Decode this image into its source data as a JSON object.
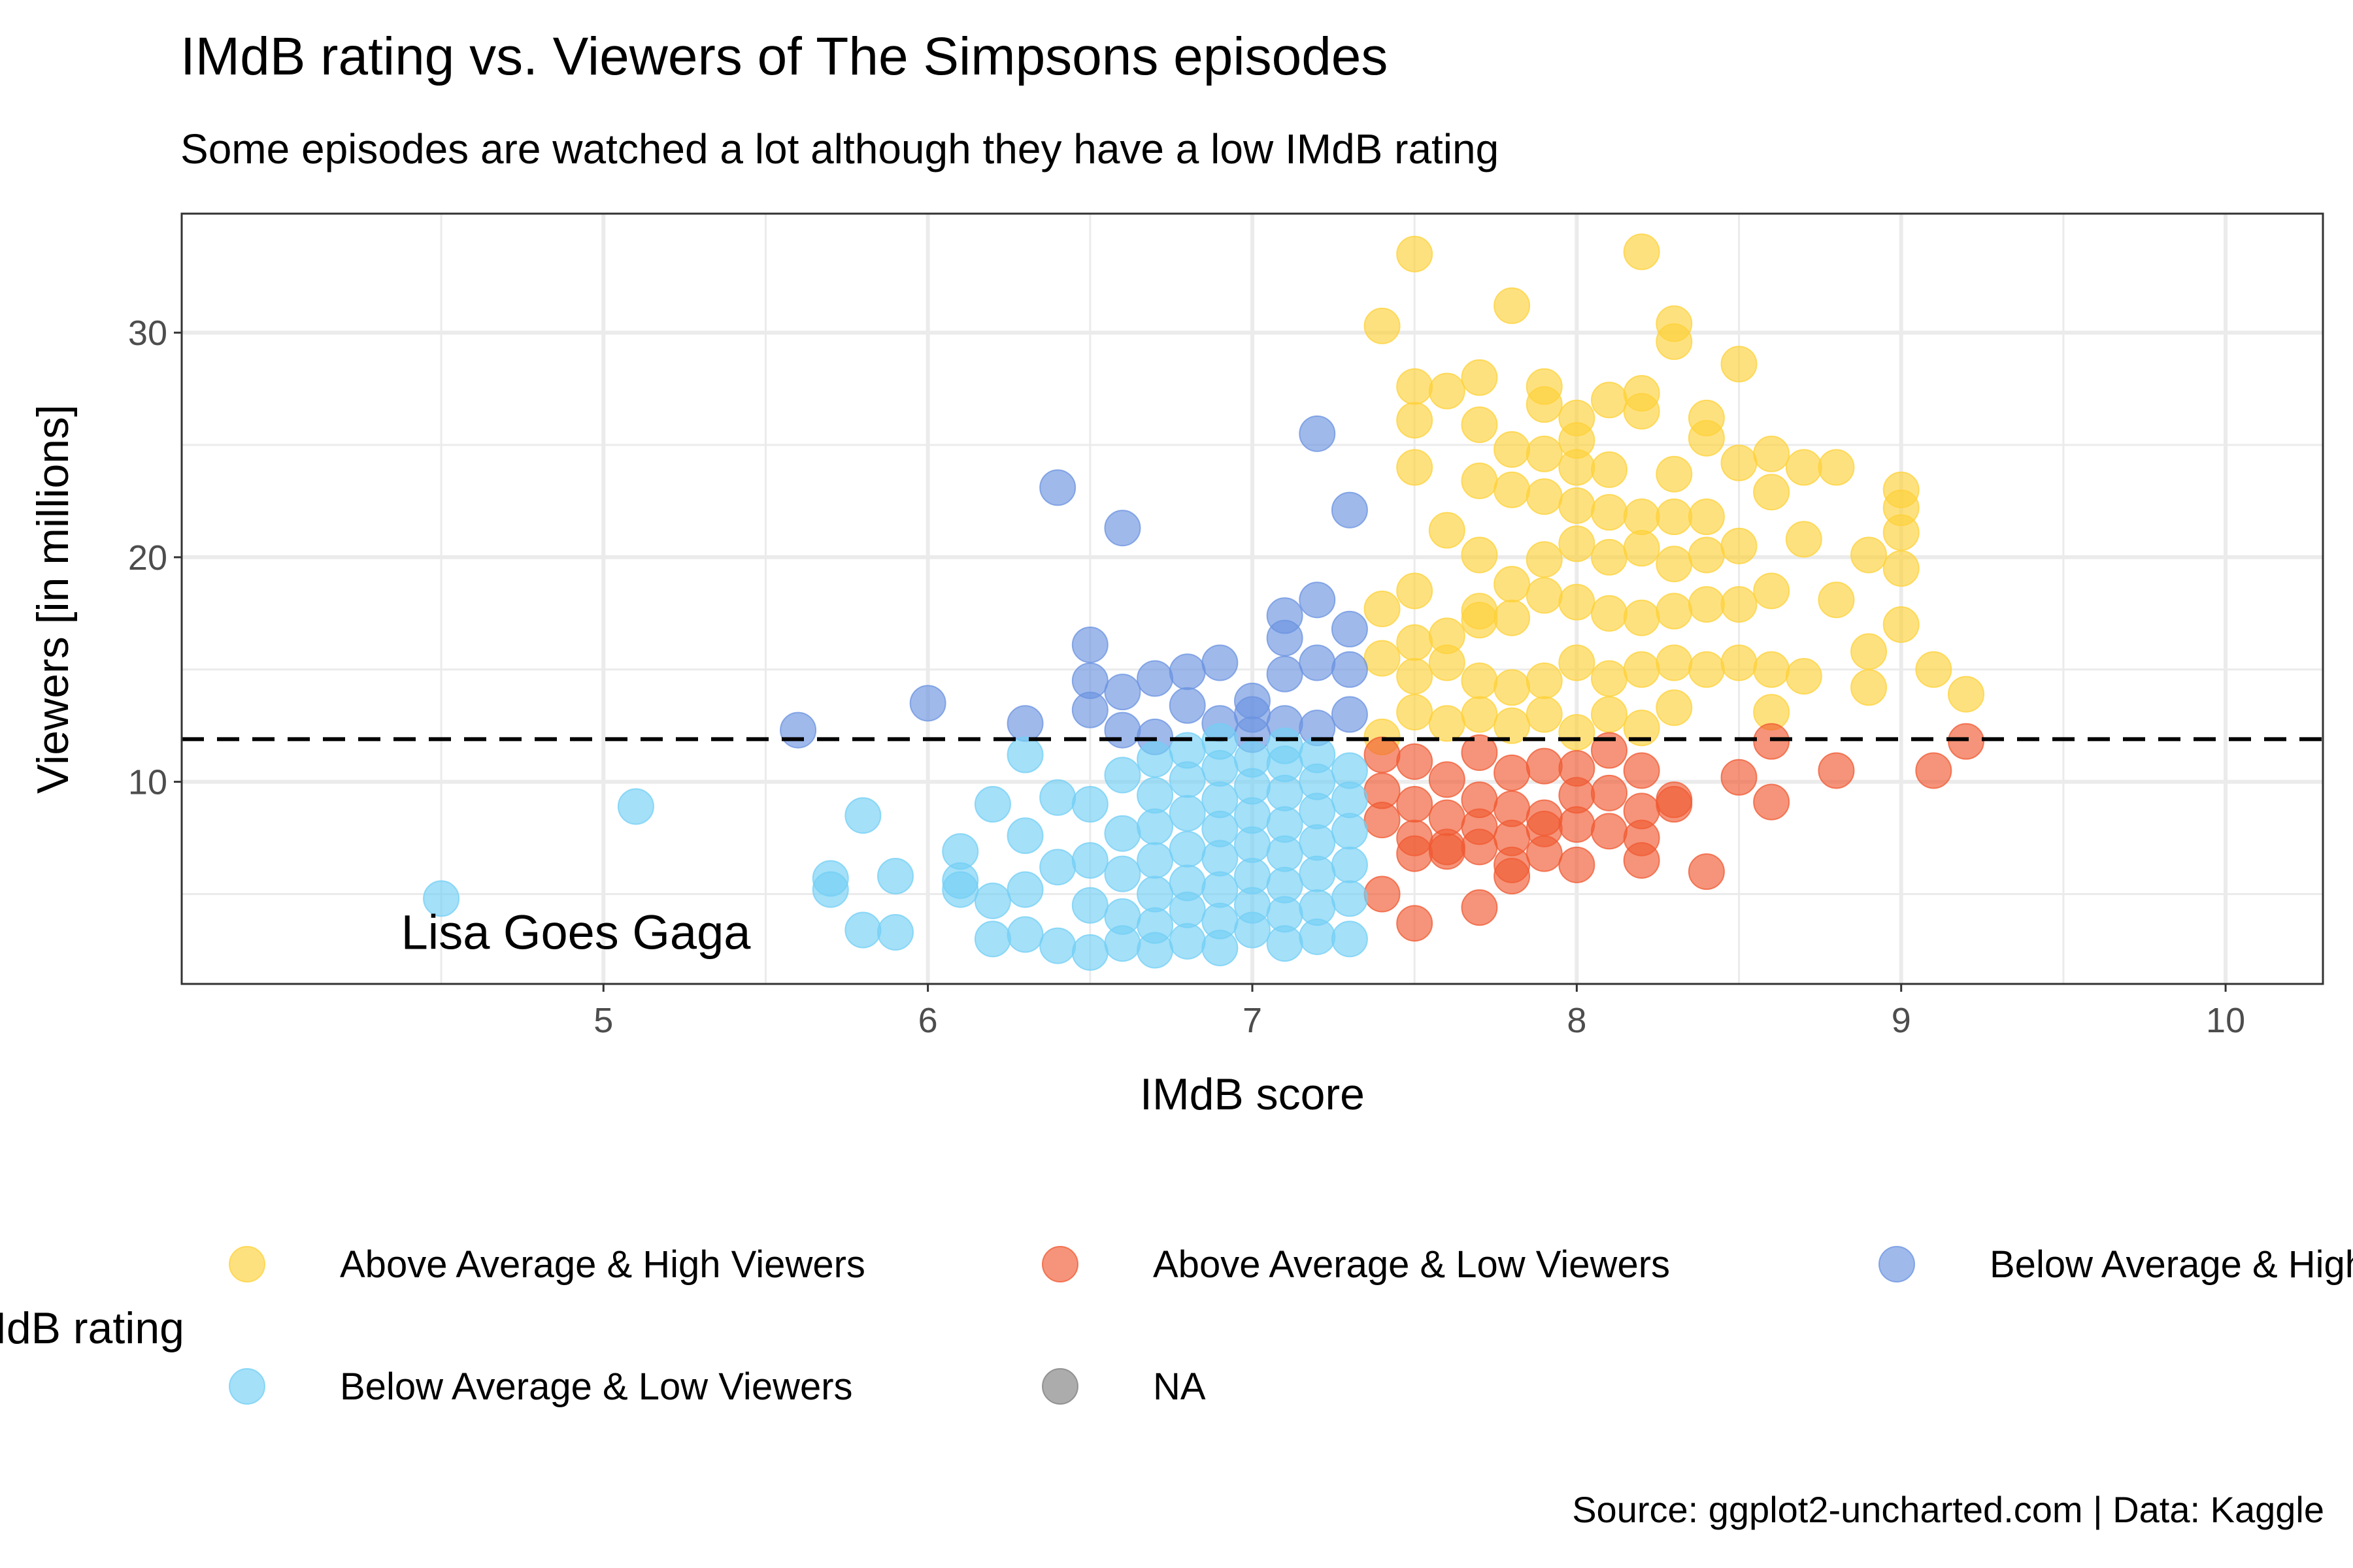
{
  "chart_data": {
    "type": "scatter",
    "title": "IMdB rating vs. Viewers of The Simpsons episodes",
    "subtitle": "Some episodes are watched a lot although they have a low IMdB rating",
    "xlabel": "IMdB score",
    "ylabel": "Viewers [in millions]",
    "xlim": [
      3.7,
      10.3
    ],
    "ylim": [
      1.0,
      35.3
    ],
    "x_ticks": [
      5,
      6,
      7,
      8,
      9,
      10
    ],
    "y_ticks": [
      10,
      20,
      30
    ],
    "grid": true,
    "reference_line": {
      "axis": "y",
      "value": 11.9,
      "style": "dashed"
    },
    "annotation": {
      "text": "Lisa Goes Gaga",
      "x": 4.9,
      "y": 2.9
    },
    "caption": "Source: ggplot2-uncharted.com | Data: Kaggle",
    "legend": {
      "title": "IMdB rating",
      "position": "bottom",
      "entries": [
        {
          "label": "Above Average & High Viewers",
          "color": "#FDD13A"
        },
        {
          "label": "Above Average & Low Viewers",
          "color": "#F05A33"
        },
        {
          "label": "Below Average & High Viewers",
          "color": "#6B93E0"
        },
        {
          "label": "Below Average & Low Viewers",
          "color": "#73CFF5"
        },
        {
          "label": "NA",
          "color": "#7F7F7F"
        }
      ]
    },
    "series": [
      {
        "name": "Above Average & High Viewers",
        "color": "#FDD13A",
        "points": [
          [
            7.5,
            33.5
          ],
          [
            8.2,
            33.6
          ],
          [
            7.4,
            30.3
          ],
          [
            7.8,
            31.2
          ],
          [
            8.3,
            30.4
          ],
          [
            8.3,
            29.6
          ],
          [
            7.5,
            27.6
          ],
          [
            7.6,
            27.4
          ],
          [
            7.7,
            28.0
          ],
          [
            7.9,
            27.6
          ],
          [
            8.0,
            26.2
          ],
          [
            8.1,
            27.0
          ],
          [
            8.2,
            27.3
          ],
          [
            8.4,
            26.2
          ],
          [
            8.5,
            28.6
          ],
          [
            7.5,
            26.1
          ],
          [
            7.7,
            25.9
          ],
          [
            7.9,
            26.8
          ],
          [
            8.0,
            25.2
          ],
          [
            8.2,
            26.5
          ],
          [
            8.4,
            25.3
          ],
          [
            7.5,
            24.0
          ],
          [
            7.7,
            23.4
          ],
          [
            7.8,
            24.8
          ],
          [
            7.9,
            24.6
          ],
          [
            8.0,
            24.0
          ],
          [
            8.1,
            23.9
          ],
          [
            8.3,
            23.7
          ],
          [
            8.5,
            24.2
          ],
          [
            8.6,
            24.6
          ],
          [
            8.7,
            24.0
          ],
          [
            8.8,
            24.0
          ],
          [
            9.0,
            23.0
          ],
          [
            7.4,
            17.7
          ],
          [
            7.5,
            18.5
          ],
          [
            7.6,
            21.2
          ],
          [
            7.7,
            20.1
          ],
          [
            7.8,
            23.0
          ],
          [
            7.9,
            22.7
          ],
          [
            8.0,
            22.3
          ],
          [
            8.1,
            22.0
          ],
          [
            8.2,
            21.8
          ],
          [
            8.3,
            21.8
          ],
          [
            8.4,
            21.8
          ],
          [
            8.6,
            22.9
          ],
          [
            9.0,
            22.2
          ],
          [
            7.7,
            17.2
          ],
          [
            7.8,
            18.8
          ],
          [
            7.9,
            19.9
          ],
          [
            8.0,
            20.6
          ],
          [
            8.1,
            20.0
          ],
          [
            8.2,
            20.4
          ],
          [
            8.3,
            19.7
          ],
          [
            8.4,
            20.1
          ],
          [
            8.5,
            20.5
          ],
          [
            8.7,
            20.8
          ],
          [
            8.9,
            20.1
          ],
          [
            9.0,
            21.1
          ],
          [
            7.5,
            16.2
          ],
          [
            7.6,
            16.5
          ],
          [
            7.7,
            17.6
          ],
          [
            7.8,
            17.3
          ],
          [
            7.9,
            18.3
          ],
          [
            8.0,
            18.0
          ],
          [
            8.1,
            17.5
          ],
          [
            8.2,
            17.3
          ],
          [
            8.3,
            17.6
          ],
          [
            8.4,
            17.9
          ],
          [
            8.5,
            17.9
          ],
          [
            8.6,
            18.5
          ],
          [
            8.8,
            18.1
          ],
          [
            9.0,
            19.5
          ],
          [
            7.4,
            15.5
          ],
          [
            7.5,
            14.7
          ],
          [
            7.6,
            15.3
          ],
          [
            7.7,
            14.5
          ],
          [
            7.8,
            14.2
          ],
          [
            7.9,
            14.5
          ],
          [
            8.0,
            15.3
          ],
          [
            8.1,
            14.6
          ],
          [
            8.2,
            15.0
          ],
          [
            8.3,
            15.3
          ],
          [
            8.4,
            15.0
          ],
          [
            8.5,
            15.3
          ],
          [
            8.6,
            15.0
          ],
          [
            8.7,
            14.7
          ],
          [
            8.9,
            15.8
          ],
          [
            9.0,
            17.0
          ],
          [
            9.1,
            15.0
          ],
          [
            9.2,
            13.9
          ],
          [
            7.4,
            12.0
          ],
          [
            7.5,
            13.1
          ],
          [
            7.6,
            12.6
          ],
          [
            7.7,
            13.0
          ],
          [
            7.8,
            12.5
          ],
          [
            7.9,
            13.0
          ],
          [
            8.0,
            12.2
          ],
          [
            8.1,
            13.0
          ],
          [
            8.2,
            12.4
          ],
          [
            8.3,
            13.3
          ],
          [
            8.6,
            13.1
          ],
          [
            8.9,
            14.2
          ]
        ]
      },
      {
        "name": "Above Average & Low Viewers",
        "color": "#F05A33",
        "points": [
          [
            7.4,
            11.2
          ],
          [
            7.5,
            10.9
          ],
          [
            7.6,
            10.1
          ],
          [
            7.7,
            11.3
          ],
          [
            7.8,
            10.4
          ],
          [
            7.9,
            10.7
          ],
          [
            8.0,
            10.6
          ],
          [
            8.1,
            11.4
          ],
          [
            8.2,
            10.5
          ],
          [
            7.4,
            9.6
          ],
          [
            7.5,
            9.0
          ],
          [
            7.6,
            8.4
          ],
          [
            7.7,
            9.2
          ],
          [
            7.8,
            8.8
          ],
          [
            7.9,
            8.4
          ],
          [
            8.0,
            9.4
          ],
          [
            8.1,
            9.5
          ],
          [
            8.2,
            8.7
          ],
          [
            8.3,
            9.2
          ],
          [
            7.4,
            8.3
          ],
          [
            7.5,
            7.5
          ],
          [
            7.6,
            7.1
          ],
          [
            7.7,
            8.0
          ],
          [
            7.8,
            7.5
          ],
          [
            7.9,
            7.9
          ],
          [
            8.0,
            8.1
          ],
          [
            8.1,
            7.8
          ],
          [
            8.2,
            7.5
          ],
          [
            8.3,
            9.0
          ],
          [
            7.5,
            6.8
          ],
          [
            7.6,
            6.9
          ],
          [
            7.7,
            7.1
          ],
          [
            7.8,
            6.3
          ],
          [
            7.9,
            6.8
          ],
          [
            8.0,
            6.3
          ],
          [
            7.4,
            5.0
          ],
          [
            7.5,
            3.7
          ],
          [
            7.7,
            4.4
          ],
          [
            7.8,
            5.8
          ],
          [
            8.2,
            6.5
          ],
          [
            8.4,
            6.0
          ],
          [
            8.5,
            10.2
          ],
          [
            8.6,
            9.1
          ],
          [
            8.6,
            11.8
          ],
          [
            8.8,
            10.5
          ],
          [
            9.1,
            10.5
          ],
          [
            9.2,
            11.8
          ]
        ]
      },
      {
        "name": "Below Average & High Viewers",
        "color": "#6B93E0",
        "points": [
          [
            7.2,
            25.5
          ],
          [
            6.4,
            23.1
          ],
          [
            7.3,
            22.1
          ],
          [
            6.6,
            21.3
          ],
          [
            7.2,
            18.1
          ],
          [
            7.1,
            17.4
          ],
          [
            7.3,
            16.8
          ],
          [
            6.5,
            16.1
          ],
          [
            7.1,
            16.4
          ],
          [
            6.5,
            14.5
          ],
          [
            6.6,
            14.0
          ],
          [
            6.7,
            14.6
          ],
          [
            6.8,
            14.9
          ],
          [
            6.9,
            15.3
          ],
          [
            7.0,
            13.6
          ],
          [
            7.1,
            14.8
          ],
          [
            7.2,
            15.3
          ],
          [
            7.3,
            15.0
          ],
          [
            6.0,
            13.5
          ],
          [
            6.3,
            12.6
          ],
          [
            6.5,
            13.2
          ],
          [
            6.6,
            12.3
          ],
          [
            6.7,
            12.0
          ],
          [
            6.8,
            13.4
          ],
          [
            6.9,
            12.6
          ],
          [
            7.0,
            13.0
          ],
          [
            7.1,
            12.6
          ],
          [
            7.2,
            12.4
          ],
          [
            7.3,
            13.0
          ],
          [
            5.6,
            12.3
          ],
          [
            7.0,
            12.1
          ]
        ]
      },
      {
        "name": "Below Average & Low Viewers",
        "color": "#73CFF5",
        "points": [
          [
            4.5,
            4.8
          ],
          [
            5.1,
            8.9
          ],
          [
            5.7,
            5.2
          ],
          [
            5.7,
            5.7
          ],
          [
            5.8,
            3.4
          ],
          [
            5.8,
            8.5
          ],
          [
            5.9,
            5.8
          ],
          [
            5.9,
            3.3
          ],
          [
            6.1,
            5.2
          ],
          [
            6.1,
            6.9
          ],
          [
            6.1,
            5.6
          ],
          [
            6.2,
            9.0
          ],
          [
            6.2,
            4.7
          ],
          [
            6.2,
            3.0
          ],
          [
            6.3,
            3.2
          ],
          [
            6.3,
            7.6
          ],
          [
            6.3,
            5.2
          ],
          [
            6.3,
            11.2
          ],
          [
            6.4,
            2.7
          ],
          [
            6.4,
            6.2
          ],
          [
            6.4,
            9.3
          ],
          [
            6.5,
            2.4
          ],
          [
            6.5,
            4.5
          ],
          [
            6.5,
            6.5
          ],
          [
            6.5,
            9.0
          ],
          [
            6.6,
            2.8
          ],
          [
            6.6,
            4.0
          ],
          [
            6.6,
            5.9
          ],
          [
            6.6,
            7.7
          ],
          [
            6.6,
            10.3
          ],
          [
            6.7,
            2.5
          ],
          [
            6.7,
            3.6
          ],
          [
            6.7,
            5.0
          ],
          [
            6.7,
            6.5
          ],
          [
            6.7,
            8.0
          ],
          [
            6.7,
            9.4
          ],
          [
            6.7,
            11.0
          ],
          [
            6.8,
            2.9
          ],
          [
            6.8,
            4.3
          ],
          [
            6.8,
            5.5
          ],
          [
            6.8,
            7.0
          ],
          [
            6.8,
            8.6
          ],
          [
            6.8,
            10.1
          ],
          [
            6.8,
            11.4
          ],
          [
            6.9,
            2.6
          ],
          [
            6.9,
            3.8
          ],
          [
            6.9,
            5.2
          ],
          [
            6.9,
            6.6
          ],
          [
            6.9,
            7.9
          ],
          [
            6.9,
            9.2
          ],
          [
            6.9,
            10.6
          ],
          [
            6.9,
            11.8
          ],
          [
            7.0,
            3.4
          ],
          [
            7.0,
            4.5
          ],
          [
            7.0,
            5.8
          ],
          [
            7.0,
            7.2
          ],
          [
            7.0,
            8.5
          ],
          [
            7.0,
            9.8
          ],
          [
            7.0,
            11.0
          ],
          [
            7.1,
            2.8
          ],
          [
            7.1,
            4.1
          ],
          [
            7.1,
            5.4
          ],
          [
            7.1,
            6.8
          ],
          [
            7.1,
            8.1
          ],
          [
            7.1,
            9.5
          ],
          [
            7.1,
            10.8
          ],
          [
            7.1,
            11.6
          ],
          [
            7.2,
            3.1
          ],
          [
            7.2,
            4.4
          ],
          [
            7.2,
            5.9
          ],
          [
            7.2,
            7.3
          ],
          [
            7.2,
            8.7
          ],
          [
            7.2,
            10.0
          ],
          [
            7.2,
            11.2
          ],
          [
            7.3,
            3.0
          ],
          [
            7.3,
            4.8
          ],
          [
            7.3,
            6.3
          ],
          [
            7.3,
            7.8
          ],
          [
            7.3,
            9.2
          ],
          [
            7.3,
            10.5
          ]
        ]
      }
    ]
  }
}
